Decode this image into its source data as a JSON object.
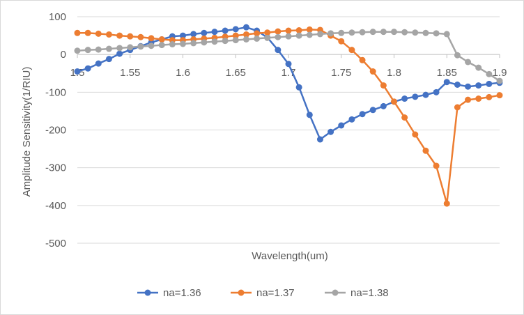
{
  "chart_data": {
    "type": "line",
    "title": "",
    "xlabel": "Wavelength(um)",
    "ylabel": "Amplitude Sensitivity(1/RIU)",
    "xlim": [
      1.5,
      1.9
    ],
    "ylim": [
      -500,
      100
    ],
    "x_ticks": [
      "1.5",
      "1.55",
      "1.6",
      "1.65",
      "1.7",
      "1.75",
      "1.8",
      "1.85",
      "1.9"
    ],
    "y_ticks": [
      "100",
      "0",
      "-100",
      "-200",
      "-300",
      "-400",
      "-500"
    ],
    "grid": "horizontal",
    "legend_position": "bottom",
    "x": [
      1.5,
      1.51,
      1.52,
      1.53,
      1.54,
      1.55,
      1.56,
      1.57,
      1.58,
      1.59,
      1.6,
      1.61,
      1.62,
      1.63,
      1.64,
      1.65,
      1.66,
      1.67,
      1.68,
      1.69,
      1.7,
      1.71,
      1.72,
      1.73,
      1.74,
      1.75,
      1.76,
      1.77,
      1.78,
      1.79,
      1.8,
      1.81,
      1.82,
      1.83,
      1.84,
      1.85,
      1.86,
      1.87,
      1.88,
      1.89,
      1.9
    ],
    "series": [
      {
        "name": "na=1.36",
        "color": "#4472c4",
        "values": [
          -45,
          -37,
          -24,
          -12,
          2,
          12,
          22,
          32,
          40,
          48,
          50,
          54,
          57,
          60,
          63,
          67,
          72,
          63,
          45,
          12,
          -25,
          -87,
          -160,
          -225,
          -205,
          -188,
          -172,
          -158,
          -147,
          -137,
          -125,
          -117,
          -112,
          -107,
          -100,
          -73,
          -80,
          -85,
          -82,
          -78,
          -75
        ]
      },
      {
        "name": "na=1.37",
        "color": "#ed7d31",
        "values": [
          57,
          57,
          55,
          53,
          50,
          48,
          46,
          43,
          40,
          38,
          38,
          40,
          42,
          44,
          47,
          50,
          53,
          56,
          58,
          61,
          63,
          64,
          66,
          65,
          50,
          35,
          12,
          -15,
          -45,
          -82,
          -125,
          -167,
          -212,
          -255,
          -295,
          -395,
          -140,
          -120,
          -117,
          -113,
          -108
        ]
      },
      {
        "name": "na=1.38",
        "color": "#a5a5a5",
        "values": [
          10,
          12,
          13,
          15,
          17,
          19,
          21,
          23,
          25,
          27,
          28,
          30,
          32,
          34,
          36,
          38,
          40,
          42,
          44,
          46,
          48,
          50,
          52,
          54,
          56,
          57,
          58,
          59,
          60,
          60,
          60,
          59,
          58,
          57,
          56,
          54,
          -2,
          -20,
          -35,
          -52,
          -70
        ]
      }
    ]
  }
}
